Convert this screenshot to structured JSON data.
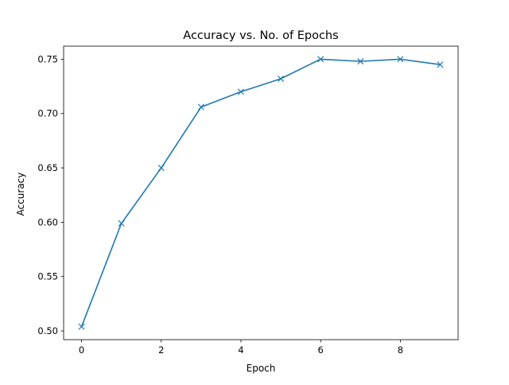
{
  "chart_data": {
    "type": "line",
    "title": "Accuracy vs. No. of Epochs",
    "xlabel": "Epoch",
    "ylabel": "Accuracy",
    "xlim": [
      -0.45,
      9.45
    ],
    "ylim": [
      0.492,
      0.762
    ],
    "xticks": [
      0,
      2,
      4,
      6,
      8
    ],
    "xtick_labels": [
      "0",
      "2",
      "4",
      "6",
      "8"
    ],
    "yticks": [
      0.5,
      0.55,
      0.6,
      0.65,
      0.7,
      0.75
    ],
    "ytick_labels": [
      "0.50",
      "0.55",
      "0.60",
      "0.65",
      "0.70",
      "0.75"
    ],
    "grid": false,
    "legend": null,
    "marker": "x",
    "series": [
      {
        "color": "#1f77b4",
        "x": [
          0,
          1,
          2,
          3,
          4,
          5,
          6,
          7,
          8,
          9
        ],
        "y": [
          0.504,
          0.599,
          0.65,
          0.706,
          0.72,
          0.732,
          0.75,
          0.748,
          0.75,
          0.745
        ]
      }
    ]
  }
}
